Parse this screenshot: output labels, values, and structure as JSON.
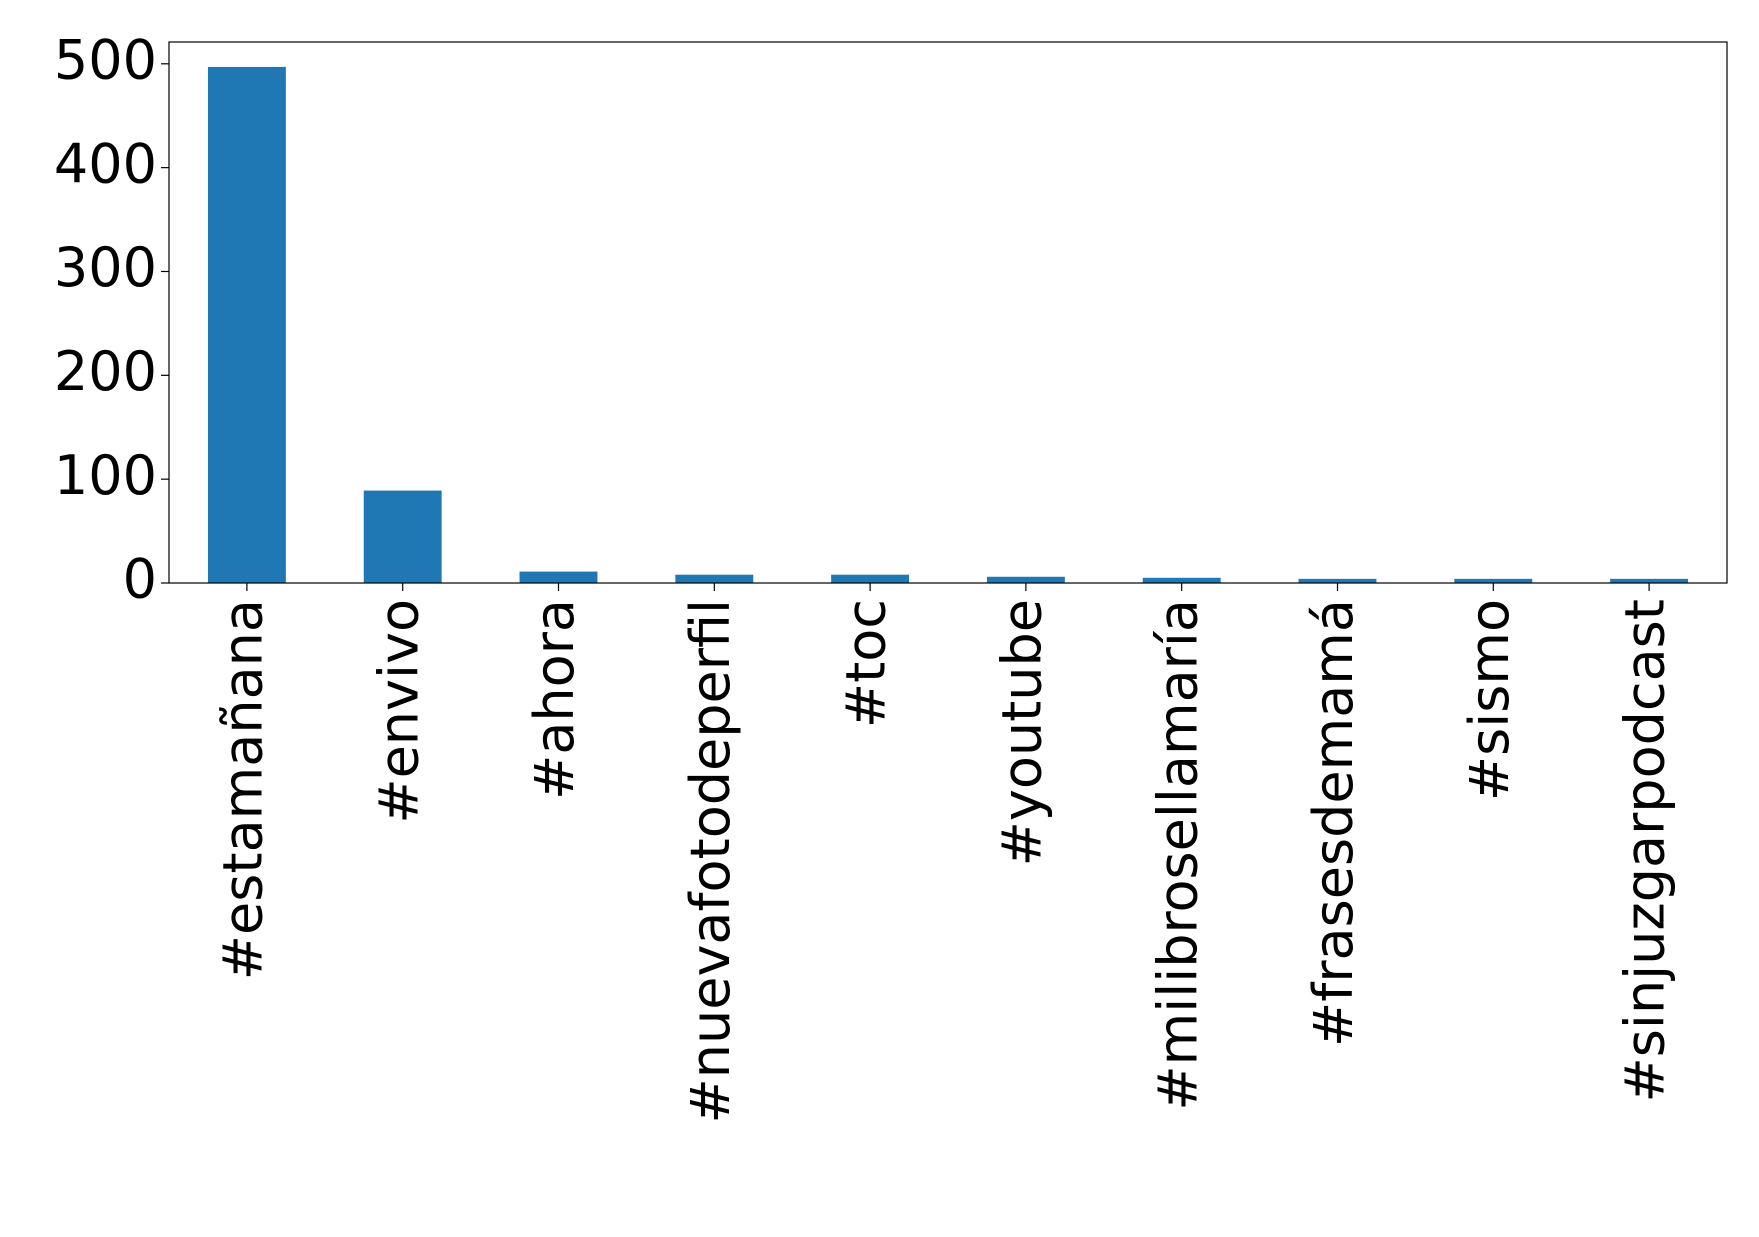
{
  "chart_data": {
    "type": "bar",
    "categories": [
      "#estamañana",
      "#envivo",
      "#ahora",
      "#nuevafotodeperfil",
      "#toc",
      "#youtube",
      "#milibrosellamaría",
      "#frasesdemamá",
      "#sismo",
      "#sinjuzgarpodcast"
    ],
    "values": [
      497,
      89,
      11,
      8,
      8,
      6,
      5,
      4,
      4,
      4
    ],
    "color": "#1f77b4",
    "ylim": [
      0,
      521
    ],
    "yticks": [
      0,
      100,
      200,
      300,
      400,
      500
    ],
    "grid": false
  }
}
